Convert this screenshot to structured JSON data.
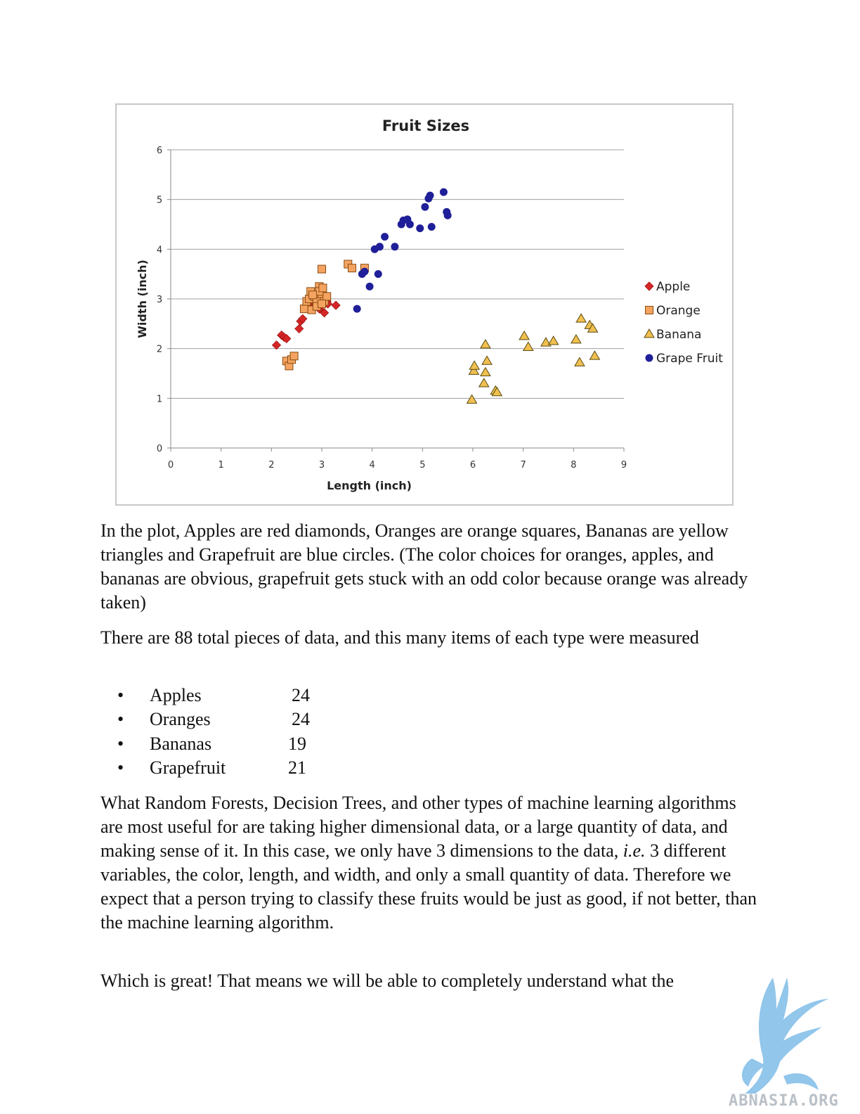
{
  "chart_data": {
    "type": "scatter",
    "title": "Fruit Sizes",
    "xlabel": "Length (inch)",
    "ylabel": "Width (inch)",
    "xlim": [
      0,
      9
    ],
    "ylim": [
      0,
      6
    ],
    "xticks": [
      0,
      1,
      2,
      3,
      4,
      5,
      6,
      7,
      8,
      9
    ],
    "yticks": [
      0,
      1,
      2,
      3,
      4,
      5,
      6
    ],
    "grid": "horizontal",
    "legend_position": "right",
    "series": [
      {
        "name": "Apple",
        "marker": "diamond",
        "color": "#d62728",
        "points": [
          [
            2.1,
            2.07
          ],
          [
            2.2,
            2.27
          ],
          [
            2.25,
            2.23
          ],
          [
            2.3,
            2.2
          ],
          [
            2.55,
            2.4
          ],
          [
            2.58,
            2.55
          ],
          [
            2.62,
            2.6
          ],
          [
            2.85,
            2.82
          ],
          [
            2.9,
            2.9
          ],
          [
            2.95,
            2.8
          ],
          [
            3.0,
            3.0
          ],
          [
            3.05,
            2.72
          ],
          [
            3.1,
            2.95
          ],
          [
            3.28,
            2.87
          ],
          [
            2.92,
            3.02
          ],
          [
            2.98,
            2.88
          ],
          [
            2.7,
            2.82
          ],
          [
            3.02,
            2.92
          ],
          [
            2.8,
            2.9
          ],
          [
            2.88,
            3.0
          ],
          [
            2.96,
            2.95
          ],
          [
            2.75,
            2.85
          ],
          [
            2.82,
            2.98
          ],
          [
            3.12,
            2.9
          ]
        ]
      },
      {
        "name": "Orange",
        "marker": "square",
        "color": "#f4a460",
        "points": [
          [
            2.3,
            1.75
          ],
          [
            2.35,
            1.65
          ],
          [
            2.4,
            1.78
          ],
          [
            2.45,
            1.85
          ],
          [
            2.65,
            2.8
          ],
          [
            2.7,
            2.95
          ],
          [
            2.75,
            3.0
          ],
          [
            2.78,
            3.15
          ],
          [
            2.8,
            2.78
          ],
          [
            2.85,
            3.05
          ],
          [
            2.9,
            2.95
          ],
          [
            2.95,
            3.25
          ],
          [
            3.0,
            3.1
          ],
          [
            3.05,
            2.95
          ],
          [
            3.1,
            3.05
          ],
          [
            3.0,
            3.6
          ],
          [
            2.95,
            3.15
          ],
          [
            3.52,
            3.7
          ],
          [
            3.6,
            3.62
          ],
          [
            3.85,
            3.62
          ],
          [
            2.9,
            2.85
          ],
          [
            3.02,
            3.22
          ],
          [
            2.82,
            3.08
          ],
          [
            3.0,
            2.9
          ]
        ]
      },
      {
        "name": "Banana",
        "marker": "triangle",
        "color": "#f0c050",
        "points": [
          [
            5.98,
            0.97
          ],
          [
            6.02,
            1.55
          ],
          [
            6.03,
            1.65
          ],
          [
            6.22,
            1.3
          ],
          [
            6.25,
            1.52
          ],
          [
            6.25,
            2.08
          ],
          [
            6.28,
            1.75
          ],
          [
            6.45,
            1.15
          ],
          [
            6.48,
            1.12
          ],
          [
            7.02,
            2.25
          ],
          [
            7.1,
            2.03
          ],
          [
            7.45,
            2.12
          ],
          [
            7.6,
            2.15
          ],
          [
            8.05,
            2.18
          ],
          [
            8.12,
            1.72
          ],
          [
            8.15,
            2.6
          ],
          [
            8.32,
            2.47
          ],
          [
            8.38,
            2.4
          ],
          [
            8.42,
            1.85
          ]
        ]
      },
      {
        "name": "Grape Fruit",
        "marker": "circle",
        "color": "#1f1f99",
        "points": [
          [
            3.7,
            2.8
          ],
          [
            3.8,
            3.5
          ],
          [
            3.85,
            3.55
          ],
          [
            3.95,
            3.25
          ],
          [
            4.05,
            4.0
          ],
          [
            4.12,
            3.5
          ],
          [
            4.15,
            4.05
          ],
          [
            4.25,
            4.25
          ],
          [
            4.45,
            4.05
          ],
          [
            4.58,
            4.5
          ],
          [
            4.62,
            4.58
          ],
          [
            4.7,
            4.6
          ],
          [
            4.75,
            4.5
          ],
          [
            4.95,
            4.42
          ],
          [
            5.05,
            4.85
          ],
          [
            5.12,
            5.02
          ],
          [
            5.15,
            5.08
          ],
          [
            5.18,
            4.45
          ],
          [
            5.42,
            5.15
          ],
          [
            5.48,
            4.75
          ],
          [
            5.5,
            4.68
          ]
        ]
      }
    ]
  },
  "paragraphs": {
    "p1": "In the plot, Apples are red diamonds, Oranges are orange squares, Bananas are yellow triangles and Grapefruit are blue circles.  (The color choices for oranges, apples, and bananas are obvious, grapefruit gets stuck with an odd color because orange was already taken)",
    "p2": "There are 88 total pieces of data, and this many items of each type were measured",
    "p3_before": "What Random Forests, Decision Trees, and other types of machine learning algorithms are most useful for are taking higher dimensional data, or a large quantity of data, and making sense of it.   In this case, we only have 3 dimensions to the data, ",
    "p3_italic": "i.e.",
    "p3_after": " 3 different variables, the color, length, and width, and only a small quantity of data.  Therefore we expect that a person trying to classify these fruits would be just as good, if not better, than the machine learning algorithm.",
    "p4": "Which is great!  That means we will be able to completely understand what the"
  },
  "fruit_counts": [
    {
      "name": "Apples",
      "count": "24"
    },
    {
      "name": "Oranges",
      "count": "24"
    },
    {
      "name": "Bananas",
      "count": "19"
    },
    {
      "name": "Grapefruit",
      "count": "21"
    }
  ],
  "bullet_char": "•",
  "watermark": {
    "text": "ABNASIA.ORG",
    "color": "#6fb6e6"
  }
}
